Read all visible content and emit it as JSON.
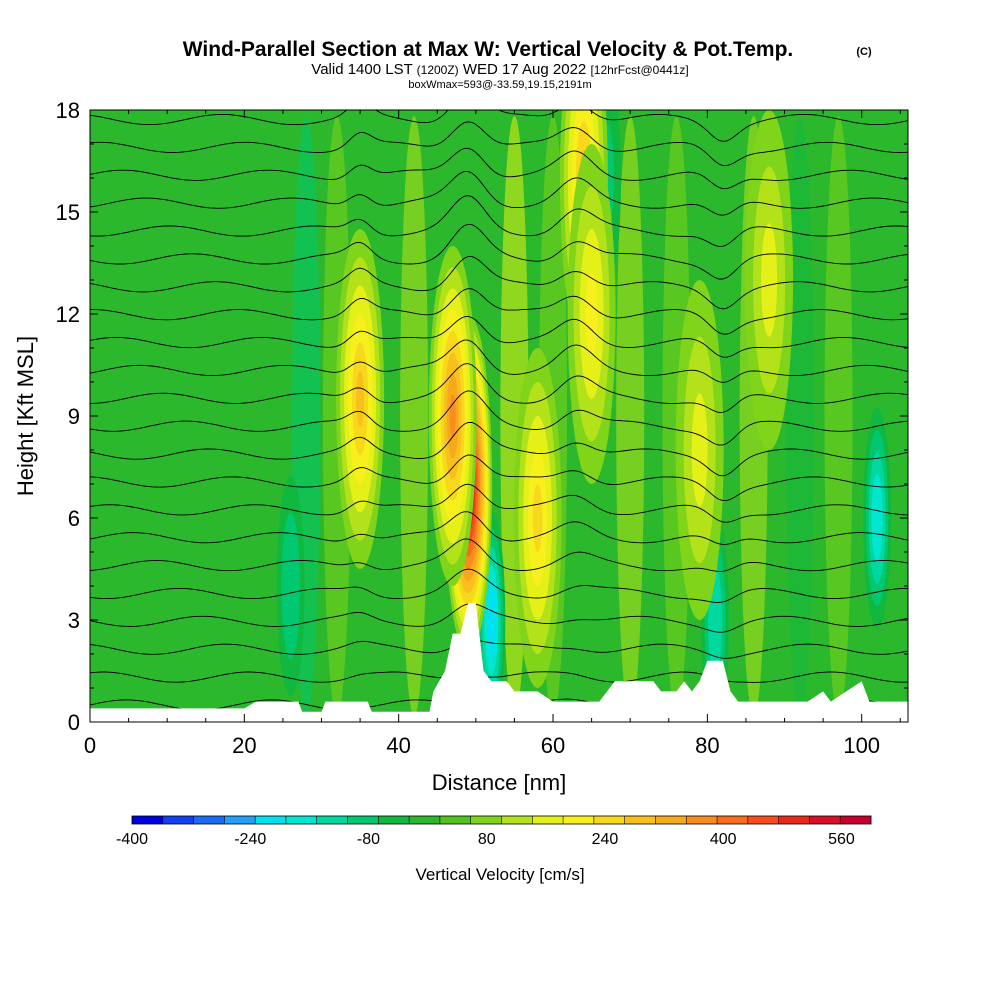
{
  "chart_data": {
    "type": "heatmap",
    "title": "Wind-Parallel Section at Max W: Vertical Velocity & Pot.Temp.",
    "title_mark": "(C)",
    "subtitle_valid": "Valid 1400 LST",
    "subtitle_z": "(1200Z)",
    "subtitle_date": "WED 17 Aug 2022",
    "subtitle_fcst": "[12hrFcst@0441z]",
    "subtitle_box": "boxWmax=593@-33.59,19.15,2191m",
    "xlabel": "Distance [nm]",
    "ylabel": "Height [Kft MSL]",
    "xlim": [
      0,
      106
    ],
    "ylim": [
      0,
      18
    ],
    "x_ticks": [
      0,
      20,
      40,
      60,
      80,
      100
    ],
    "y_ticks": [
      0,
      3,
      6,
      9,
      12,
      15,
      18
    ],
    "colorbar": {
      "title": "Vertical Velocity [cm/s]",
      "min": -400,
      "max": 600,
      "step": 40,
      "tick_labels": [
        -400,
        -240,
        -80,
        80,
        240,
        400,
        560
      ],
      "colors": [
        "#0000e0",
        "#1040f0",
        "#1a6cf5",
        "#20a0f8",
        "#00e0f0",
        "#00e6d0",
        "#00d8a0",
        "#00c870",
        "#10b840",
        "#2cb82c",
        "#50c41c",
        "#80d41a",
        "#b4e21a",
        "#e4f018",
        "#f8f01c",
        "#f8d81c",
        "#f8c01c",
        "#f8a81c",
        "#f88c1c",
        "#f86c1c",
        "#f84c1c",
        "#e82818",
        "#d81028",
        "#c80030"
      ]
    },
    "max_w_cm_s": 593,
    "max_w_location": {
      "x_nm": 49,
      "height_kft": 7
    },
    "updraft_cores": [
      {
        "x_nm": 49,
        "z_kft": 7,
        "w": 560
      },
      {
        "x_nm": 47,
        "z_kft": 9,
        "w": 320
      },
      {
        "x_nm": 35,
        "z_kft": 9.5,
        "w": 260
      },
      {
        "x_nm": 58,
        "z_kft": 6,
        "w": 220
      },
      {
        "x_nm": 64,
        "z_kft": 16,
        "w": 240
      },
      {
        "x_nm": 65,
        "z_kft": 12,
        "w": 180
      },
      {
        "x_nm": 88,
        "z_kft": 13,
        "w": 140
      },
      {
        "x_nm": 79,
        "z_kft": 8,
        "w": 120
      }
    ],
    "downdraft_cores": [
      {
        "x_nm": 102,
        "z_kft": 6,
        "w": -200
      },
      {
        "x_nm": 81,
        "z_kft": 3,
        "w": -160
      },
      {
        "x_nm": 26,
        "z_kft": 4,
        "w": -120
      },
      {
        "x_nm": 52,
        "z_kft": 3,
        "w": -240
      },
      {
        "x_nm": 67,
        "z_kft": 16,
        "w": -100
      }
    ],
    "terrain_kft": [
      [
        0,
        0.4
      ],
      [
        20,
        0.4
      ],
      [
        21.5,
        0.6
      ],
      [
        27,
        0.6
      ],
      [
        27.5,
        0.3
      ],
      [
        30,
        0.3
      ],
      [
        30.5,
        0.6
      ],
      [
        36,
        0.6
      ],
      [
        36.5,
        0.3
      ],
      [
        44,
        0.3
      ],
      [
        44.5,
        0.9
      ],
      [
        46,
        1.5
      ],
      [
        47,
        2.6
      ],
      [
        48,
        2.6
      ],
      [
        49,
        3.5
      ],
      [
        50,
        3.5
      ],
      [
        51,
        1.5
      ],
      [
        52,
        1.2
      ],
      [
        54,
        1.2
      ],
      [
        55,
        0.9
      ],
      [
        58,
        0.9
      ],
      [
        60,
        0.6
      ],
      [
        66,
        0.6
      ],
      [
        68,
        1.2
      ],
      [
        73,
        1.2
      ],
      [
        74,
        0.9
      ],
      [
        76,
        0.9
      ],
      [
        77,
        1.2
      ],
      [
        78,
        0.9
      ],
      [
        79,
        1.2
      ],
      [
        80,
        1.8
      ],
      [
        82,
        1.8
      ],
      [
        83,
        0.9
      ],
      [
        84,
        0.6
      ],
      [
        93,
        0.6
      ],
      [
        95,
        0.9
      ],
      [
        96,
        0.6
      ],
      [
        98,
        0.9
      ],
      [
        100,
        1.2
      ],
      [
        101,
        0.6
      ],
      [
        106,
        0.6
      ]
    ],
    "theta_contour_count": 22,
    "grid": false
  }
}
